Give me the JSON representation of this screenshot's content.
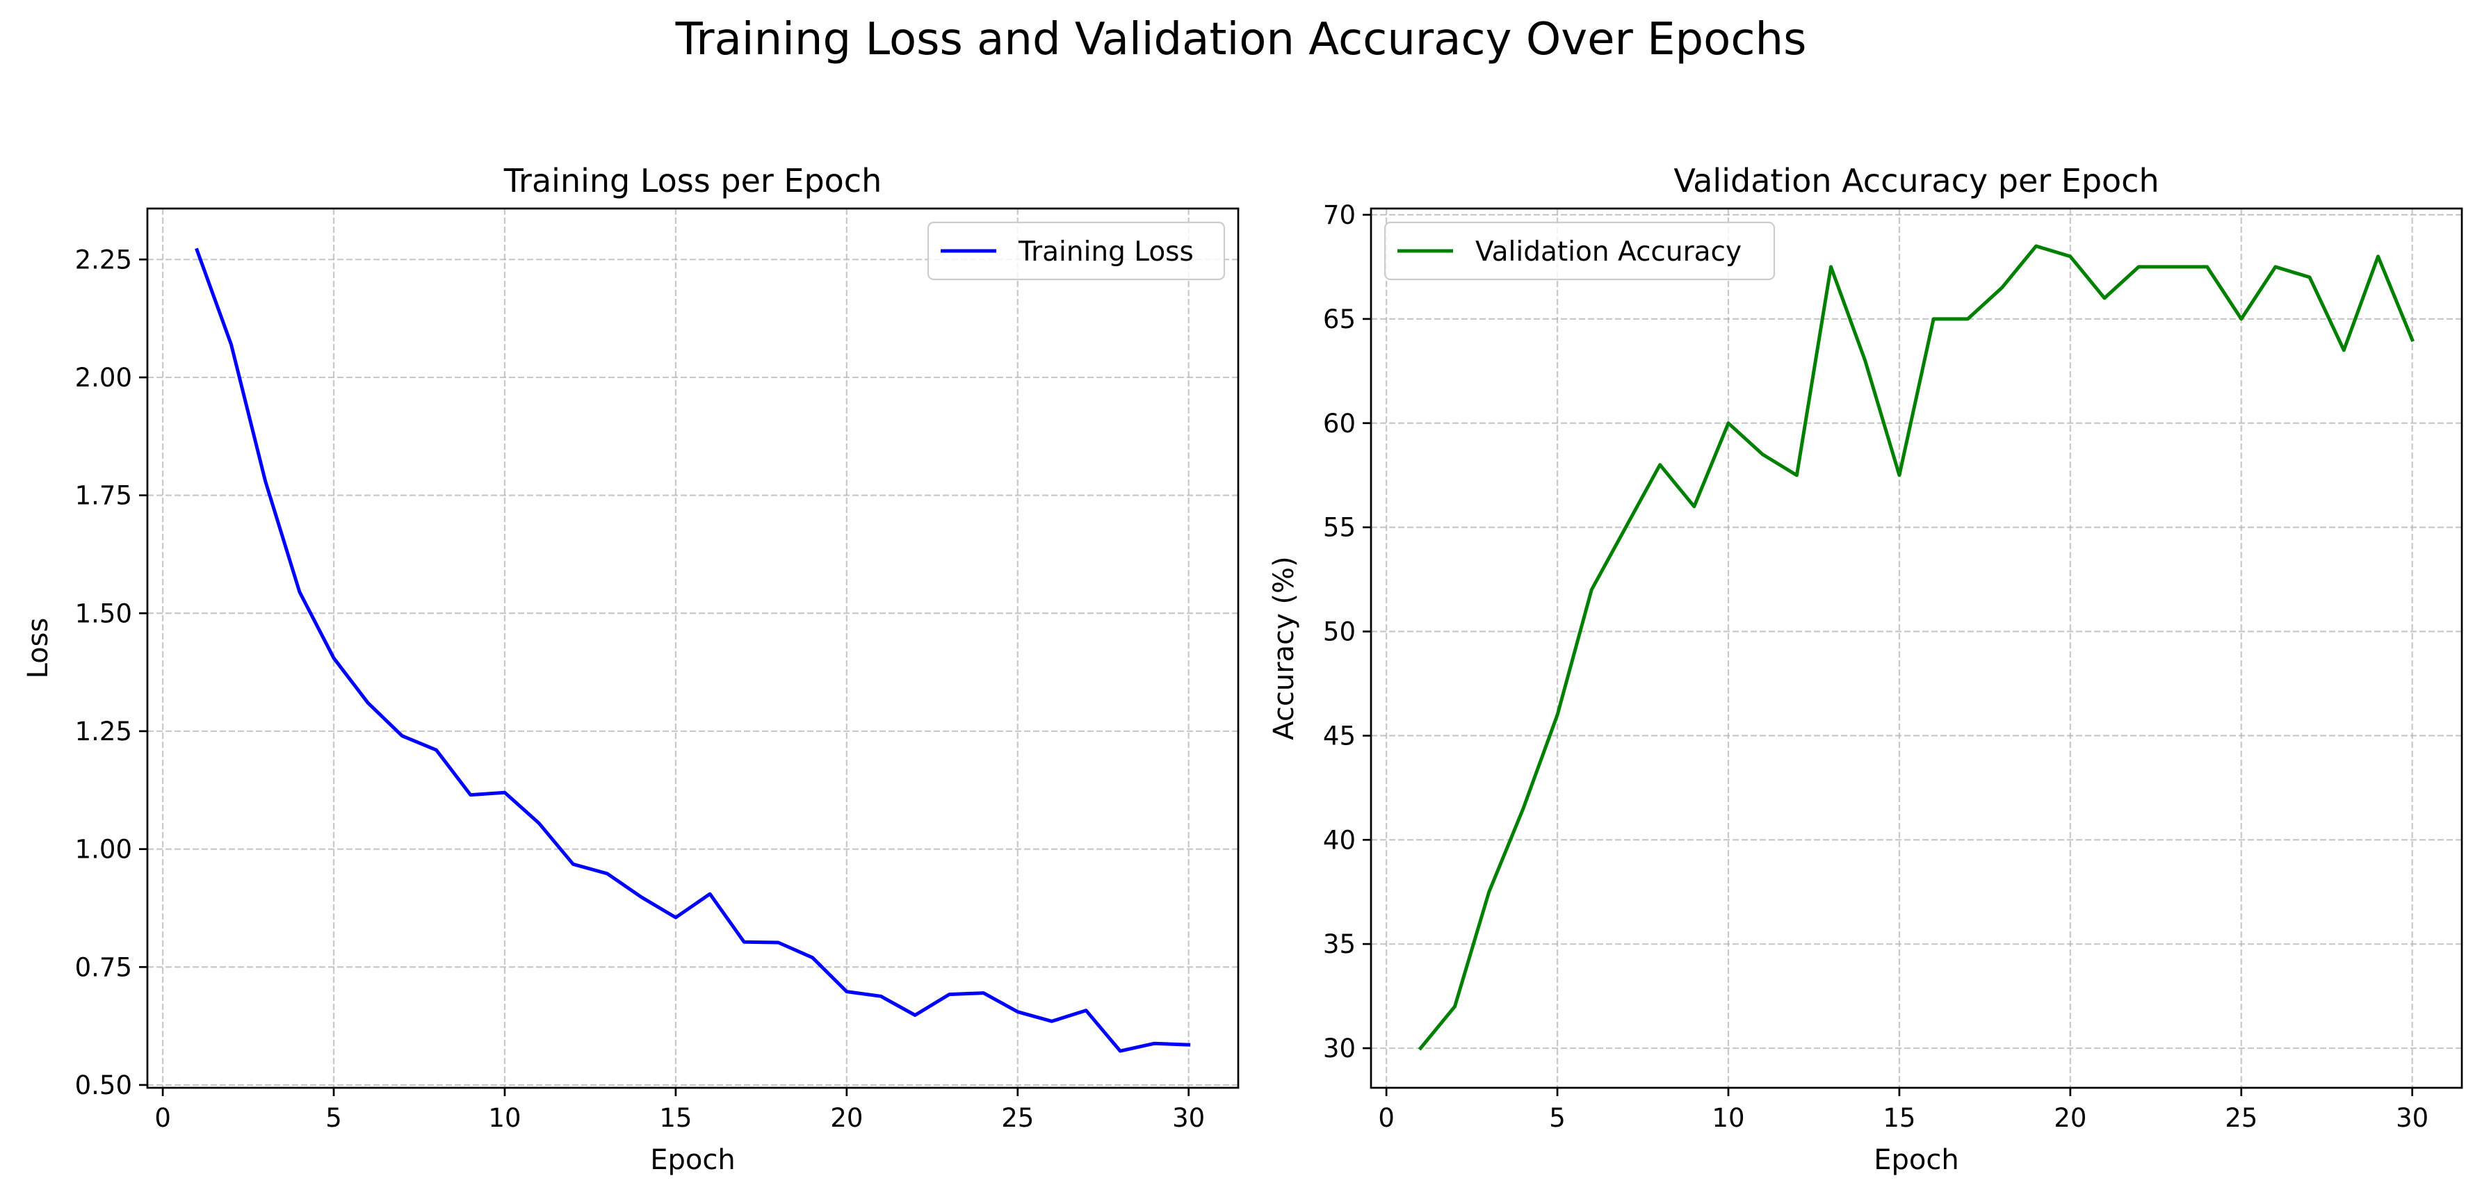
{
  "figure": {
    "title": "Training Loss and Validation Accuracy Over Epochs"
  },
  "chart_data": [
    {
      "type": "line",
      "title": "Training Loss per Epoch",
      "xlabel": "Epoch",
      "ylabel": "Loss",
      "xlim": [
        -0.45,
        31.45
      ],
      "ylim": [
        0.494,
        2.358
      ],
      "xticks": [
        0,
        5,
        10,
        15,
        20,
        25,
        30
      ],
      "yticks": [
        0.5,
        0.75,
        1.0,
        1.25,
        1.5,
        1.75,
        2.0,
        2.25
      ],
      "ytick_labels": [
        "0.50",
        "0.75",
        "1.00",
        "1.25",
        "1.50",
        "1.75",
        "2.00",
        "2.25"
      ],
      "grid": true,
      "legend_position": "upper right",
      "x": [
        1,
        2,
        3,
        4,
        5,
        6,
        7,
        8,
        9,
        10,
        11,
        12,
        13,
        14,
        15,
        16,
        17,
        18,
        19,
        20,
        21,
        22,
        23,
        24,
        25,
        26,
        27,
        28,
        29,
        30
      ],
      "series": [
        {
          "name": "Training Loss",
          "color": "#0000ff",
          "values": [
            2.27,
            2.07,
            1.78,
            1.545,
            1.405,
            1.31,
            1.24,
            1.21,
            1.115,
            1.12,
            1.055,
            0.968,
            0.948,
            0.898,
            0.855,
            0.905,
            0.803,
            0.802,
            0.77,
            0.698,
            0.688,
            0.648,
            0.692,
            0.695,
            0.655,
            0.635,
            0.658,
            0.572,
            0.588,
            0.585
          ]
        }
      ]
    },
    {
      "type": "line",
      "title": "Validation Accuracy per Epoch",
      "xlabel": "Epoch",
      "ylabel": "Accuracy (%)",
      "xlim": [
        -0.45,
        31.45
      ],
      "ylim": [
        28.1,
        70.3
      ],
      "xticks": [
        0,
        5,
        10,
        15,
        20,
        25,
        30
      ],
      "yticks": [
        30,
        35,
        40,
        45,
        50,
        55,
        60,
        65,
        70
      ],
      "ytick_labels": [
        "30",
        "35",
        "40",
        "45",
        "50",
        "55",
        "60",
        "65",
        "70"
      ],
      "grid": true,
      "legend_position": "upper left",
      "x": [
        1,
        2,
        3,
        4,
        5,
        6,
        7,
        8,
        9,
        10,
        11,
        12,
        13,
        14,
        15,
        16,
        17,
        18,
        19,
        20,
        21,
        22,
        23,
        24,
        25,
        26,
        27,
        28,
        29,
        30
      ],
      "series": [
        {
          "name": "Validation Accuracy",
          "color": "#008000",
          "values": [
            30,
            32,
            37.5,
            41.5,
            46,
            52,
            55,
            58,
            56,
            60,
            58.5,
            57.5,
            67.5,
            63,
            57.5,
            65,
            65,
            66.5,
            68.5,
            68,
            66,
            67.5,
            67.5,
            67.5,
            65,
            67.5,
            67,
            63.5,
            68,
            64
          ]
        }
      ]
    }
  ]
}
